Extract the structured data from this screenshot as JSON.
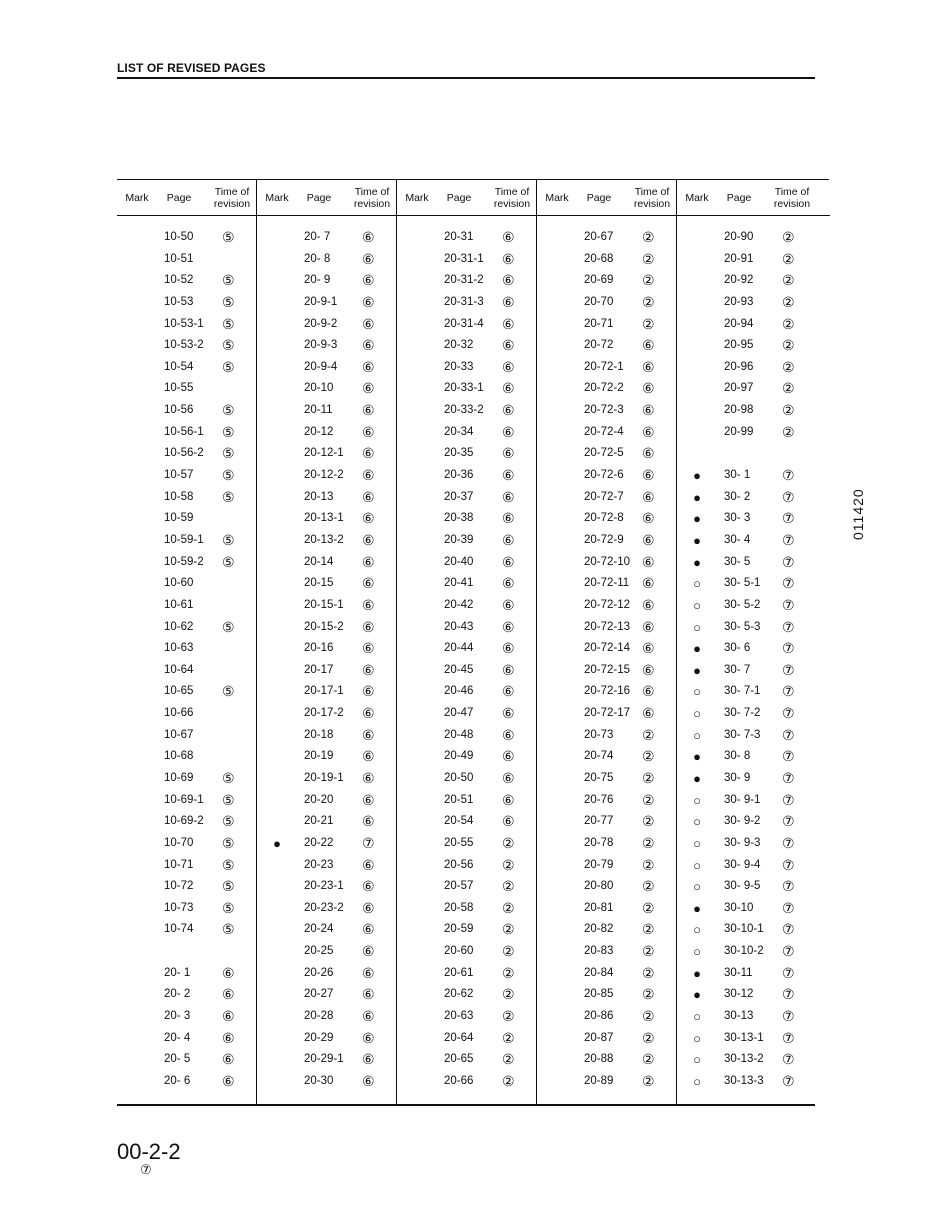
{
  "title": "LIST OF REVISED PAGES",
  "headers": {
    "mark": "Mark",
    "page": "Page",
    "revision": "Time of revision"
  },
  "side_code": "011420",
  "footer": {
    "page_number": "00-2-2",
    "revision": "⑦"
  },
  "columns": [
    [
      [
        "",
        "10-50",
        "⑤"
      ],
      [
        "",
        "10-51",
        ""
      ],
      [
        "",
        "10-52",
        "⑤"
      ],
      [
        "",
        "10-53",
        "⑤"
      ],
      [
        "",
        "10-53-1",
        "⑤"
      ],
      [
        "",
        "10-53-2",
        "⑤"
      ],
      [
        "",
        "10-54",
        "⑤"
      ],
      [
        "",
        "10-55",
        ""
      ],
      [
        "",
        "10-56",
        "⑤"
      ],
      [
        "",
        "10-56-1",
        "⑤"
      ],
      [
        "",
        "10-56-2",
        "⑤"
      ],
      [
        "",
        "10-57",
        "⑤"
      ],
      [
        "",
        "10-58",
        "⑤"
      ],
      [
        "",
        "10-59",
        ""
      ],
      [
        "",
        "10-59-1",
        "⑤"
      ],
      [
        "",
        "10-59-2",
        "⑤"
      ],
      [
        "",
        "10-60",
        ""
      ],
      [
        "",
        "10-61",
        ""
      ],
      [
        "",
        "10-62",
        "⑤"
      ],
      [
        "",
        "10-63",
        ""
      ],
      [
        "",
        "10-64",
        ""
      ],
      [
        "",
        "10-65",
        "⑤"
      ],
      [
        "",
        "10-66",
        ""
      ],
      [
        "",
        "10-67",
        ""
      ],
      [
        "",
        "10-68",
        ""
      ],
      [
        "",
        "10-69",
        "⑤"
      ],
      [
        "",
        "10-69-1",
        "⑤"
      ],
      [
        "",
        "10-69-2",
        "⑤"
      ],
      [
        "",
        "10-70",
        "⑤"
      ],
      [
        "",
        "10-71",
        "⑤"
      ],
      [
        "",
        "10-72",
        "⑤"
      ],
      [
        "",
        "10-73",
        "⑤"
      ],
      [
        "",
        "10-74",
        "⑤"
      ],
      [
        "",
        "",
        ""
      ],
      [
        "",
        "20- 1",
        "⑥"
      ],
      [
        "",
        "20- 2",
        "⑥"
      ],
      [
        "",
        "20- 3",
        "⑥"
      ],
      [
        "",
        "20- 4",
        "⑥"
      ],
      [
        "",
        "20- 5",
        "⑥"
      ],
      [
        "",
        "20- 6",
        "⑥"
      ]
    ],
    [
      [
        "",
        "20- 7",
        "⑥"
      ],
      [
        "",
        "20- 8",
        "⑥"
      ],
      [
        "",
        "20- 9",
        "⑥"
      ],
      [
        "",
        "20-9-1",
        "⑥"
      ],
      [
        "",
        "20-9-2",
        "⑥"
      ],
      [
        "",
        "20-9-3",
        "⑥"
      ],
      [
        "",
        "20-9-4",
        "⑥"
      ],
      [
        "",
        "20-10",
        "⑥"
      ],
      [
        "",
        "20-11",
        "⑥"
      ],
      [
        "",
        "20-12",
        "⑥"
      ],
      [
        "",
        "20-12-1",
        "⑥"
      ],
      [
        "",
        "20-12-2",
        "⑥"
      ],
      [
        "",
        "20-13",
        "⑥"
      ],
      [
        "",
        "20-13-1",
        "⑥"
      ],
      [
        "",
        "20-13-2",
        "⑥"
      ],
      [
        "",
        "20-14",
        "⑥"
      ],
      [
        "",
        "20-15",
        "⑥"
      ],
      [
        "",
        "20-15-1",
        "⑥"
      ],
      [
        "",
        "20-15-2",
        "⑥"
      ],
      [
        "",
        "20-16",
        "⑥"
      ],
      [
        "",
        "20-17",
        "⑥"
      ],
      [
        "",
        "20-17-1",
        "⑥"
      ],
      [
        "",
        "20-17-2",
        "⑥"
      ],
      [
        "",
        "20-18",
        "⑥"
      ],
      [
        "",
        "20-19",
        "⑥"
      ],
      [
        "",
        "20-19-1",
        "⑥"
      ],
      [
        "",
        "20-20",
        "⑥"
      ],
      [
        "",
        "20-21",
        "⑥"
      ],
      [
        "●",
        "20-22",
        "⑦"
      ],
      [
        "",
        "20-23",
        "⑥"
      ],
      [
        "",
        "20-23-1",
        "⑥"
      ],
      [
        "",
        "20-23-2",
        "⑥"
      ],
      [
        "",
        "20-24",
        "⑥"
      ],
      [
        "",
        "20-25",
        "⑥"
      ],
      [
        "",
        "20-26",
        "⑥"
      ],
      [
        "",
        "20-27",
        "⑥"
      ],
      [
        "",
        "20-28",
        "⑥"
      ],
      [
        "",
        "20-29",
        "⑥"
      ],
      [
        "",
        "20-29-1",
        "⑥"
      ],
      [
        "",
        "20-30",
        "⑥"
      ]
    ],
    [
      [
        "",
        "20-31",
        "⑥"
      ],
      [
        "",
        "20-31-1",
        "⑥"
      ],
      [
        "",
        "20-31-2",
        "⑥"
      ],
      [
        "",
        "20-31-3",
        "⑥"
      ],
      [
        "",
        "20-31-4",
        "⑥"
      ],
      [
        "",
        "20-32",
        "⑥"
      ],
      [
        "",
        "20-33",
        "⑥"
      ],
      [
        "",
        "20-33-1",
        "⑥"
      ],
      [
        "",
        "20-33-2",
        "⑥"
      ],
      [
        "",
        "20-34",
        "⑥"
      ],
      [
        "",
        "20-35",
        "⑥"
      ],
      [
        "",
        "20-36",
        "⑥"
      ],
      [
        "",
        "20-37",
        "⑥"
      ],
      [
        "",
        "20-38",
        "⑥"
      ],
      [
        "",
        "20-39",
        "⑥"
      ],
      [
        "",
        "20-40",
        "⑥"
      ],
      [
        "",
        "20-41",
        "⑥"
      ],
      [
        "",
        "20-42",
        "⑥"
      ],
      [
        "",
        "20-43",
        "⑥"
      ],
      [
        "",
        "20-44",
        "⑥"
      ],
      [
        "",
        "20-45",
        "⑥"
      ],
      [
        "",
        "20-46",
        "⑥"
      ],
      [
        "",
        "20-47",
        "⑥"
      ],
      [
        "",
        "20-48",
        "⑥"
      ],
      [
        "",
        "20-49",
        "⑥"
      ],
      [
        "",
        "20-50",
        "⑥"
      ],
      [
        "",
        "20-51",
        "⑥"
      ],
      [
        "",
        "20-54",
        "⑥"
      ],
      [
        "",
        "20-55",
        "②"
      ],
      [
        "",
        "20-56",
        "②"
      ],
      [
        "",
        "20-57",
        "②"
      ],
      [
        "",
        "20-58",
        "②"
      ],
      [
        "",
        "20-59",
        "②"
      ],
      [
        "",
        "20-60",
        "②"
      ],
      [
        "",
        "20-61",
        "②"
      ],
      [
        "",
        "20-62",
        "②"
      ],
      [
        "",
        "20-63",
        "②"
      ],
      [
        "",
        "20-64",
        "②"
      ],
      [
        "",
        "20-65",
        "②"
      ],
      [
        "",
        "20-66",
        "②"
      ]
    ],
    [
      [
        "",
        "20-67",
        "②"
      ],
      [
        "",
        "20-68",
        "②"
      ],
      [
        "",
        "20-69",
        "②"
      ],
      [
        "",
        "20-70",
        "②"
      ],
      [
        "",
        "20-71",
        "②"
      ],
      [
        "",
        "20-72",
        "⑥"
      ],
      [
        "",
        "20-72-1",
        "⑥"
      ],
      [
        "",
        "20-72-2",
        "⑥"
      ],
      [
        "",
        "20-72-3",
        "⑥"
      ],
      [
        "",
        "20-72-4",
        "⑥"
      ],
      [
        "",
        "20-72-5",
        "⑥"
      ],
      [
        "",
        "20-72-6",
        "⑥"
      ],
      [
        "",
        "20-72-7",
        "⑥"
      ],
      [
        "",
        "20-72-8",
        "⑥"
      ],
      [
        "",
        "20-72-9",
        "⑥"
      ],
      [
        "",
        "20-72-10",
        "⑥"
      ],
      [
        "",
        "20-72-11",
        "⑥"
      ],
      [
        "",
        "20-72-12",
        "⑥"
      ],
      [
        "",
        "20-72-13",
        "⑥"
      ],
      [
        "",
        "20-72-14",
        "⑥"
      ],
      [
        "",
        "20-72-15",
        "⑥"
      ],
      [
        "",
        "20-72-16",
        "⑥"
      ],
      [
        "",
        "20-72-17",
        "⑥"
      ],
      [
        "",
        "20-73",
        "②"
      ],
      [
        "",
        "20-74",
        "②"
      ],
      [
        "",
        "20-75",
        "②"
      ],
      [
        "",
        "20-76",
        "②"
      ],
      [
        "",
        "20-77",
        "②"
      ],
      [
        "",
        "20-78",
        "②"
      ],
      [
        "",
        "20-79",
        "②"
      ],
      [
        "",
        "20-80",
        "②"
      ],
      [
        "",
        "20-81",
        "②"
      ],
      [
        "",
        "20-82",
        "②"
      ],
      [
        "",
        "20-83",
        "②"
      ],
      [
        "",
        "20-84",
        "②"
      ],
      [
        "",
        "20-85",
        "②"
      ],
      [
        "",
        "20-86",
        "②"
      ],
      [
        "",
        "20-87",
        "②"
      ],
      [
        "",
        "20-88",
        "②"
      ],
      [
        "",
        "20-89",
        "②"
      ]
    ],
    [
      [
        "",
        "20-90",
        "②"
      ],
      [
        "",
        "20-91",
        "②"
      ],
      [
        "",
        "20-92",
        "②"
      ],
      [
        "",
        "20-93",
        "②"
      ],
      [
        "",
        "20-94",
        "②"
      ],
      [
        "",
        "20-95",
        "②"
      ],
      [
        "",
        "20-96",
        "②"
      ],
      [
        "",
        "20-97",
        "②"
      ],
      [
        "",
        "20-98",
        "②"
      ],
      [
        "",
        "20-99",
        "②"
      ],
      [
        "",
        "",
        ""
      ],
      [
        "●",
        "30- 1",
        "⑦"
      ],
      [
        "●",
        "30- 2",
        "⑦"
      ],
      [
        "●",
        "30- 3",
        "⑦"
      ],
      [
        "●",
        "30- 4",
        "⑦"
      ],
      [
        "●",
        "30- 5",
        "⑦"
      ],
      [
        "○",
        "30- 5-1",
        "⑦"
      ],
      [
        "○",
        "30- 5-2",
        "⑦"
      ],
      [
        "○",
        "30- 5-3",
        "⑦"
      ],
      [
        "●",
        "30- 6",
        "⑦"
      ],
      [
        "●",
        "30- 7",
        "⑦"
      ],
      [
        "○",
        "30- 7-1",
        "⑦"
      ],
      [
        "○",
        "30- 7-2",
        "⑦"
      ],
      [
        "○",
        "30- 7-3",
        "⑦"
      ],
      [
        "●",
        "30- 8",
        "⑦"
      ],
      [
        "●",
        "30- 9",
        "⑦"
      ],
      [
        "○",
        "30- 9-1",
        "⑦"
      ],
      [
        "○",
        "30- 9-2",
        "⑦"
      ],
      [
        "○",
        "30- 9-3",
        "⑦"
      ],
      [
        "○",
        "30- 9-4",
        "⑦"
      ],
      [
        "○",
        "30- 9-5",
        "⑦"
      ],
      [
        "●",
        "30-10",
        "⑦"
      ],
      [
        "○",
        "30-10-1",
        "⑦"
      ],
      [
        "○",
        "30-10-2",
        "⑦"
      ],
      [
        "●",
        "30-11",
        "⑦"
      ],
      [
        "●",
        "30-12",
        "⑦"
      ],
      [
        "○",
        "30-13",
        "⑦"
      ],
      [
        "○",
        "30-13-1",
        "⑦"
      ],
      [
        "○",
        "30-13-2",
        "⑦"
      ],
      [
        "○",
        "30-13-3",
        "⑦"
      ]
    ]
  ]
}
